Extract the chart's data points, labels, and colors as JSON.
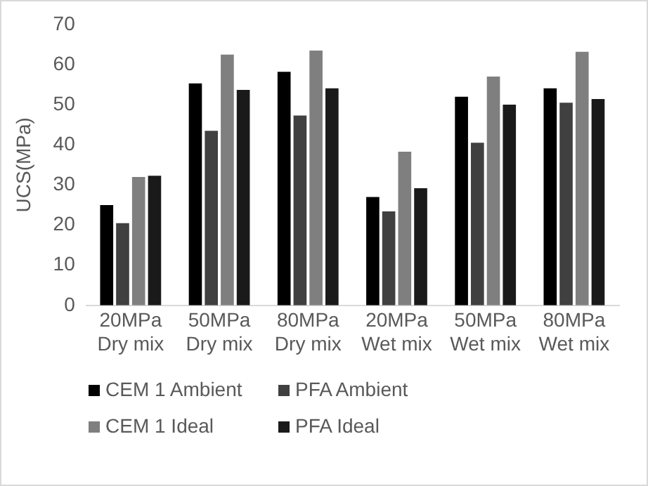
{
  "chart_data": {
    "type": "bar",
    "ylabel": "UCS(MPa)",
    "categories": [
      "20MPa Dry mix",
      "50MPa Dry mix",
      "80MPa Dry mix",
      "20MPa Wet mix",
      "50MPa Wet mix",
      "80MPa Wet mix"
    ],
    "series": [
      {
        "name": "CEM 1 Ambient",
        "color": "#000000",
        "values": [
          25,
          55.3,
          58.2,
          27,
          52,
          54.1
        ]
      },
      {
        "name": "PFA Ambient",
        "color": "#404040",
        "values": [
          20.5,
          43.5,
          47.3,
          23.4,
          40.5,
          50.5
        ]
      },
      {
        "name": "CEM 1 Ideal",
        "color": "#7f7f7f",
        "values": [
          32,
          62.5,
          63.5,
          38.3,
          57,
          63.2
        ]
      },
      {
        "name": "PFA Ideal",
        "color": "#1a1a1a",
        "values": [
          32.3,
          53.7,
          54.1,
          29.2,
          50,
          51.4
        ]
      }
    ],
    "ylim": [
      0,
      70
    ],
    "yticks": [
      0,
      10,
      20,
      30,
      40,
      50,
      60,
      70
    ],
    "grid": false,
    "legend": "bottom"
  }
}
